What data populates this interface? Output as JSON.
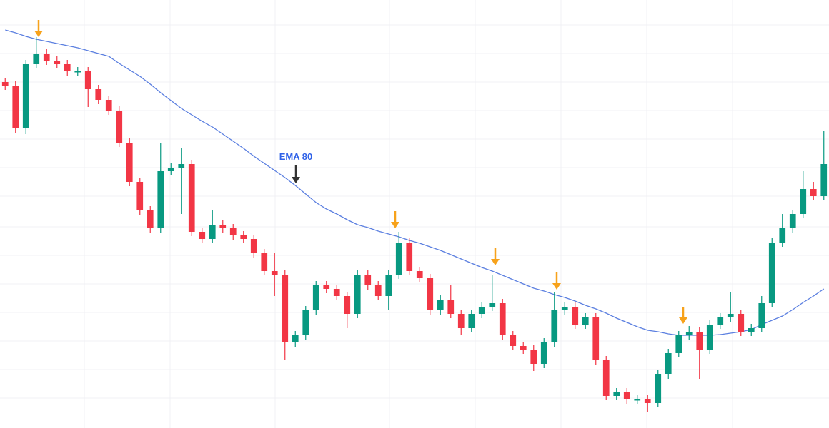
{
  "chart_data": {
    "type": "candlestick",
    "ylim": [
      0,
      600
    ],
    "up_color": "#089981",
    "down_color": "#f23645",
    "open": [
      485,
      480,
      420,
      510,
      525,
      515,
      510,
      500,
      500,
      475,
      460,
      445,
      400,
      345,
      305,
      280,
      360,
      365,
      370,
      275,
      265,
      285,
      280,
      270,
      265,
      245,
      220,
      215,
      120,
      130,
      165,
      200,
      195,
      185,
      160,
      215,
      200,
      185,
      215,
      260,
      220,
      210,
      165,
      180,
      160,
      140,
      160,
      170,
      175,
      130,
      115,
      110,
      90,
      120,
      165,
      170,
      145,
      155,
      95,
      45,
      50,
      40,
      40,
      35,
      75,
      105,
      130,
      135,
      110,
      145,
      155,
      160,
      135,
      140,
      175,
      260,
      280,
      300,
      335,
      325
    ],
    "high": [
      491,
      486,
      516,
      548,
      531,
      521,
      516,
      506,
      506,
      481,
      466,
      451,
      406,
      351,
      311,
      400,
      371,
      392,
      376,
      281,
      305,
      291,
      286,
      276,
      271,
      251,
      245,
      221,
      136,
      171,
      206,
      206,
      201,
      191,
      221,
      221,
      206,
      221,
      275,
      266,
      226,
      216,
      186,
      200,
      166,
      166,
      176,
      215,
      181,
      136,
      121,
      116,
      126,
      190,
      176,
      176,
      161,
      161,
      101,
      56,
      56,
      46,
      46,
      81,
      111,
      136,
      143,
      141,
      151,
      161,
      190,
      166,
      146,
      185,
      266,
      300,
      306,
      360,
      345,
      416
    ],
    "low": [
      474,
      414,
      412,
      504,
      509,
      504,
      494,
      494,
      450,
      454,
      439,
      394,
      339,
      299,
      274,
      274,
      354,
      300,
      269,
      259,
      259,
      274,
      264,
      259,
      239,
      214,
      185,
      95,
      114,
      124,
      159,
      189,
      179,
      140,
      154,
      194,
      179,
      165,
      209,
      214,
      204,
      159,
      159,
      154,
      130,
      134,
      154,
      164,
      124,
      109,
      104,
      80,
      84,
      114,
      159,
      139,
      139,
      89,
      39,
      39,
      34,
      34,
      22,
      29,
      69,
      99,
      124,
      68,
      104,
      139,
      149,
      129,
      129,
      134,
      169,
      254,
      274,
      294,
      319,
      319
    ],
    "close": [
      480,
      420,
      510,
      525,
      515,
      510,
      500,
      500,
      475,
      460,
      445,
      400,
      345,
      305,
      280,
      360,
      365,
      370,
      275,
      265,
      285,
      280,
      270,
      265,
      245,
      220,
      215,
      120,
      130,
      165,
      200,
      195,
      185,
      160,
      215,
      200,
      185,
      215,
      260,
      220,
      210,
      165,
      180,
      160,
      140,
      160,
      170,
      175,
      130,
      115,
      110,
      90,
      120,
      165,
      170,
      145,
      155,
      95,
      45,
      50,
      40,
      40,
      35,
      75,
      105,
      130,
      135,
      110,
      145,
      155,
      160,
      135,
      140,
      175,
      260,
      280,
      300,
      335,
      325,
      370
    ],
    "ema": {
      "label": "EMA 80",
      "color": "#5b7fe0",
      "values": [
        558,
        554,
        549,
        545,
        542,
        539,
        536,
        533,
        529,
        525,
        521,
        511,
        502,
        493,
        482,
        470,
        459,
        448,
        439,
        430,
        422,
        412,
        402,
        392,
        381,
        371,
        361,
        351,
        340,
        328,
        316,
        307,
        300,
        292,
        285,
        281,
        276,
        272,
        268,
        263,
        259,
        254,
        249,
        243,
        237,
        231,
        225,
        220,
        214,
        208,
        202,
        196,
        192,
        187,
        183,
        178,
        172,
        167,
        161,
        154,
        148,
        142,
        137,
        135,
        132,
        130,
        130,
        130,
        130,
        131,
        133,
        135,
        138,
        145,
        151,
        157,
        166,
        176,
        185,
        195
      ]
    }
  }
}
